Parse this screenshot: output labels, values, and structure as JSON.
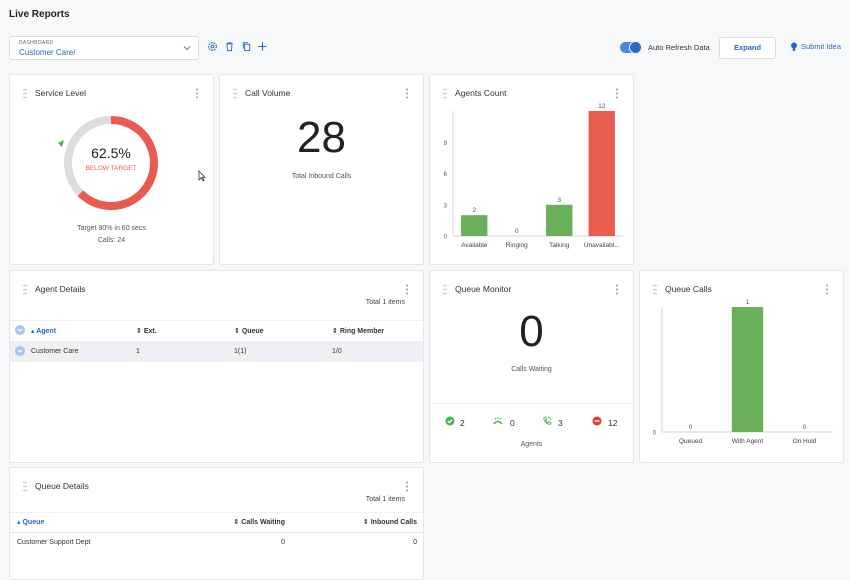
{
  "page": {
    "title": "Live Reports"
  },
  "dashboard": {
    "label": "DASHBOARD",
    "value": "Customer Care/"
  },
  "toolbar": {
    "auto_refresh_label": "Auto Refresh Data",
    "auto_refresh_on": true,
    "expand_label": "Expand",
    "submit_idea_label": "Submit Idea"
  },
  "service_level": {
    "title": "Service Level",
    "percent": "62.5%",
    "percent_value": 62.5,
    "status": "BELOW TARGET",
    "target_text": "Target 80% in 60 secs",
    "calls_text": "Calls: 24"
  },
  "call_volume": {
    "title": "Call Volume",
    "value": "28",
    "caption": "Total Inbound Calls"
  },
  "agents_count": {
    "title": "Agents Count",
    "chart_data": {
      "type": "bar",
      "categories": [
        "Available",
        "Ringing",
        "Talking",
        "Unavailabl..."
      ],
      "values": [
        2,
        0,
        3,
        12
      ],
      "colors": [
        "#6ab05a",
        "#6ab05a",
        "#6ab05a",
        "#e85c50"
      ],
      "yticks": [
        "0",
        "3",
        "6",
        "9"
      ],
      "ylim": [
        0,
        12
      ]
    }
  },
  "agent_details": {
    "title": "Agent Details",
    "total": "Total 1 items",
    "columns": [
      "Agent",
      "Ext.",
      "Queue",
      "Ring Member"
    ],
    "rows": [
      [
        "Customer Care",
        "1",
        "1(1)",
        "1/0"
      ]
    ]
  },
  "queue_monitor": {
    "title": "Queue Monitor",
    "value": "0",
    "caption": "Calls Waiting",
    "stats": [
      {
        "icon": "check-circle-icon",
        "value": "2",
        "color": "#4caf50"
      },
      {
        "icon": "phone-ringing-icon",
        "value": "0",
        "color": "#4caf50"
      },
      {
        "icon": "phone-talking-icon",
        "value": "3",
        "color": "#4caf50"
      },
      {
        "icon": "minus-circle-icon",
        "value": "12",
        "color": "#e53935"
      }
    ],
    "agents_label": "Agents"
  },
  "queue_calls": {
    "title": "Queue Calls",
    "chart_data": {
      "type": "bar",
      "categories": [
        "Queued",
        "With Agent",
        "On Hold"
      ],
      "values": [
        0,
        1,
        0
      ],
      "colors": [
        "#6ab05a",
        "#6ab05a",
        "#6ab05a"
      ],
      "yticks": [
        "0"
      ],
      "ylim": [
        0,
        1
      ]
    }
  },
  "queue_details": {
    "title": "Queue Details",
    "total": "Total 1 items",
    "columns": [
      "Queue",
      "Calls Waiting",
      "Inbound Calls"
    ],
    "rows": [
      [
        "Customer Support Dept",
        "0",
        "0"
      ]
    ]
  }
}
